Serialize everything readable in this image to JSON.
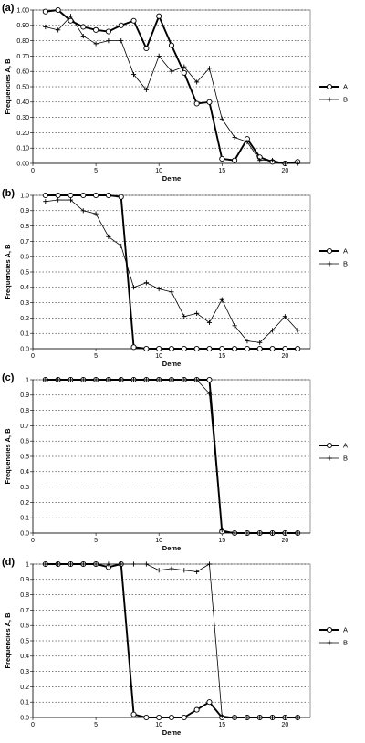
{
  "chart_data": [
    {
      "type": "line",
      "panel_label": "(a)",
      "xlabel": "Deme",
      "ylabel": "Frequencies A, B",
      "xlim": [
        0,
        22
      ],
      "ylim": [
        0,
        1
      ],
      "xticks": [
        "0",
        "5",
        "10",
        "15",
        "20"
      ],
      "yticks": [
        "0.00",
        "0.10",
        "0.20",
        "0.30",
        "0.40",
        "0.50",
        "0.60",
        "0.70",
        "0.80",
        "0.90",
        "1.00"
      ],
      "grid": "horizontal dotted",
      "legend": "right",
      "x": [
        1,
        2,
        3,
        4,
        5,
        6,
        7,
        8,
        9,
        10,
        11,
        12,
        13,
        14,
        15,
        16,
        17,
        18,
        19,
        20,
        21
      ],
      "series": [
        {
          "name": "A",
          "marker": "circle",
          "values": [
            0.99,
            1.0,
            0.93,
            0.89,
            0.87,
            0.86,
            0.9,
            0.93,
            0.75,
            0.96,
            0.77,
            0.59,
            0.39,
            0.4,
            0.03,
            0.02,
            0.16,
            0.04,
            0.01,
            0.0,
            0.01
          ]
        },
        {
          "name": "B",
          "marker": "plus",
          "values": [
            0.89,
            0.87,
            0.96,
            0.83,
            0.78,
            0.8,
            0.8,
            0.58,
            0.48,
            0.7,
            0.6,
            0.63,
            0.53,
            0.62,
            0.29,
            0.17,
            0.14,
            0.02,
            0.02,
            0.0,
            0.0
          ]
        }
      ]
    },
    {
      "type": "line",
      "panel_label": "(b)",
      "xlabel": "Deme",
      "ylabel": "Frequencies A, B",
      "xlim": [
        0,
        22
      ],
      "ylim": [
        0,
        1
      ],
      "xticks": [
        "0",
        "5",
        "10",
        "15",
        "20"
      ],
      "yticks": [
        "0.0",
        "0.1",
        "0.2",
        "0.3",
        "0.4",
        "0.5",
        "0.6",
        "0.7",
        "0.8",
        "0.9",
        "1.0"
      ],
      "grid": "horizontal dotted",
      "legend": "right",
      "x": [
        1,
        2,
        3,
        4,
        5,
        6,
        7,
        8,
        9,
        10,
        11,
        12,
        13,
        14,
        15,
        16,
        17,
        18,
        19,
        20,
        21
      ],
      "series": [
        {
          "name": "A",
          "marker": "circle",
          "values": [
            1,
            1,
            1,
            1,
            1,
            1,
            0.99,
            0.01,
            0,
            0,
            0,
            0,
            0,
            0,
            0,
            0,
            0,
            0,
            0,
            0,
            0
          ]
        },
        {
          "name": "B",
          "marker": "plus",
          "values": [
            0.96,
            0.97,
            0.97,
            0.9,
            0.88,
            0.73,
            0.67,
            0.4,
            0.43,
            0.39,
            0.37,
            0.21,
            0.23,
            0.17,
            0.32,
            0.15,
            0.05,
            0.04,
            0.12,
            0.21,
            0.12
          ]
        }
      ]
    },
    {
      "type": "line",
      "panel_label": "(c)",
      "xlabel": "Deme",
      "ylabel": "Frequencies A, B",
      "xlim": [
        0,
        22
      ],
      "ylim": [
        0,
        1
      ],
      "xticks": [
        "0",
        "5",
        "10",
        "15",
        "20"
      ],
      "yticks": [
        "0.0",
        "0.1",
        "0.2",
        "0.3",
        "0.4",
        "0.5",
        "0.6",
        "0.7",
        "0.8",
        "0.9",
        "1"
      ],
      "grid": "horizontal dotted",
      "legend": "right",
      "x": [
        1,
        2,
        3,
        4,
        5,
        6,
        7,
        8,
        9,
        10,
        11,
        12,
        13,
        14,
        15,
        16,
        17,
        18,
        19,
        20,
        21
      ],
      "series": [
        {
          "name": "A",
          "marker": "circle",
          "values": [
            1,
            1,
            1,
            1,
            1,
            1,
            1,
            1,
            1,
            1,
            1,
            1,
            1,
            1,
            0.01,
            0,
            0,
            0,
            0,
            0,
            0
          ]
        },
        {
          "name": "B",
          "marker": "plus",
          "values": [
            1,
            1,
            1,
            1,
            1,
            1,
            1,
            1,
            1,
            1,
            1,
            1,
            1,
            0.91,
            0.02,
            0,
            0,
            0,
            0,
            0,
            0
          ]
        }
      ]
    },
    {
      "type": "line",
      "panel_label": "(d)",
      "xlabel": "Deme",
      "ylabel": "Frequencies A, B",
      "xlim": [
        0,
        22
      ],
      "ylim": [
        0,
        1
      ],
      "xticks": [
        "0",
        "5",
        "10",
        "15",
        "20"
      ],
      "yticks": [
        "0.0",
        "0.1",
        "0.2",
        "0.3",
        "0.4",
        "0.5",
        "0.6",
        "0.7",
        "0.8",
        "0.9",
        "1"
      ],
      "grid": "horizontal dotted",
      "legend": "right",
      "x": [
        1,
        2,
        3,
        4,
        5,
        6,
        7,
        8,
        9,
        10,
        11,
        12,
        13,
        14,
        15,
        16,
        17,
        18,
        19,
        20,
        21
      ],
      "series": [
        {
          "name": "A",
          "marker": "circle",
          "values": [
            1,
            1,
            1,
            1,
            1,
            0.98,
            1,
            0.02,
            0,
            0,
            0,
            0,
            0.05,
            0.1,
            0,
            0,
            0,
            0,
            0,
            0,
            0
          ]
        },
        {
          "name": "B",
          "marker": "plus",
          "values": [
            1,
            1,
            1,
            1,
            1,
            1,
            1,
            1,
            1,
            0.96,
            0.97,
            0.96,
            0.95,
            1,
            0.01,
            0,
            0,
            0,
            0,
            0,
            0
          ]
        }
      ]
    }
  ]
}
